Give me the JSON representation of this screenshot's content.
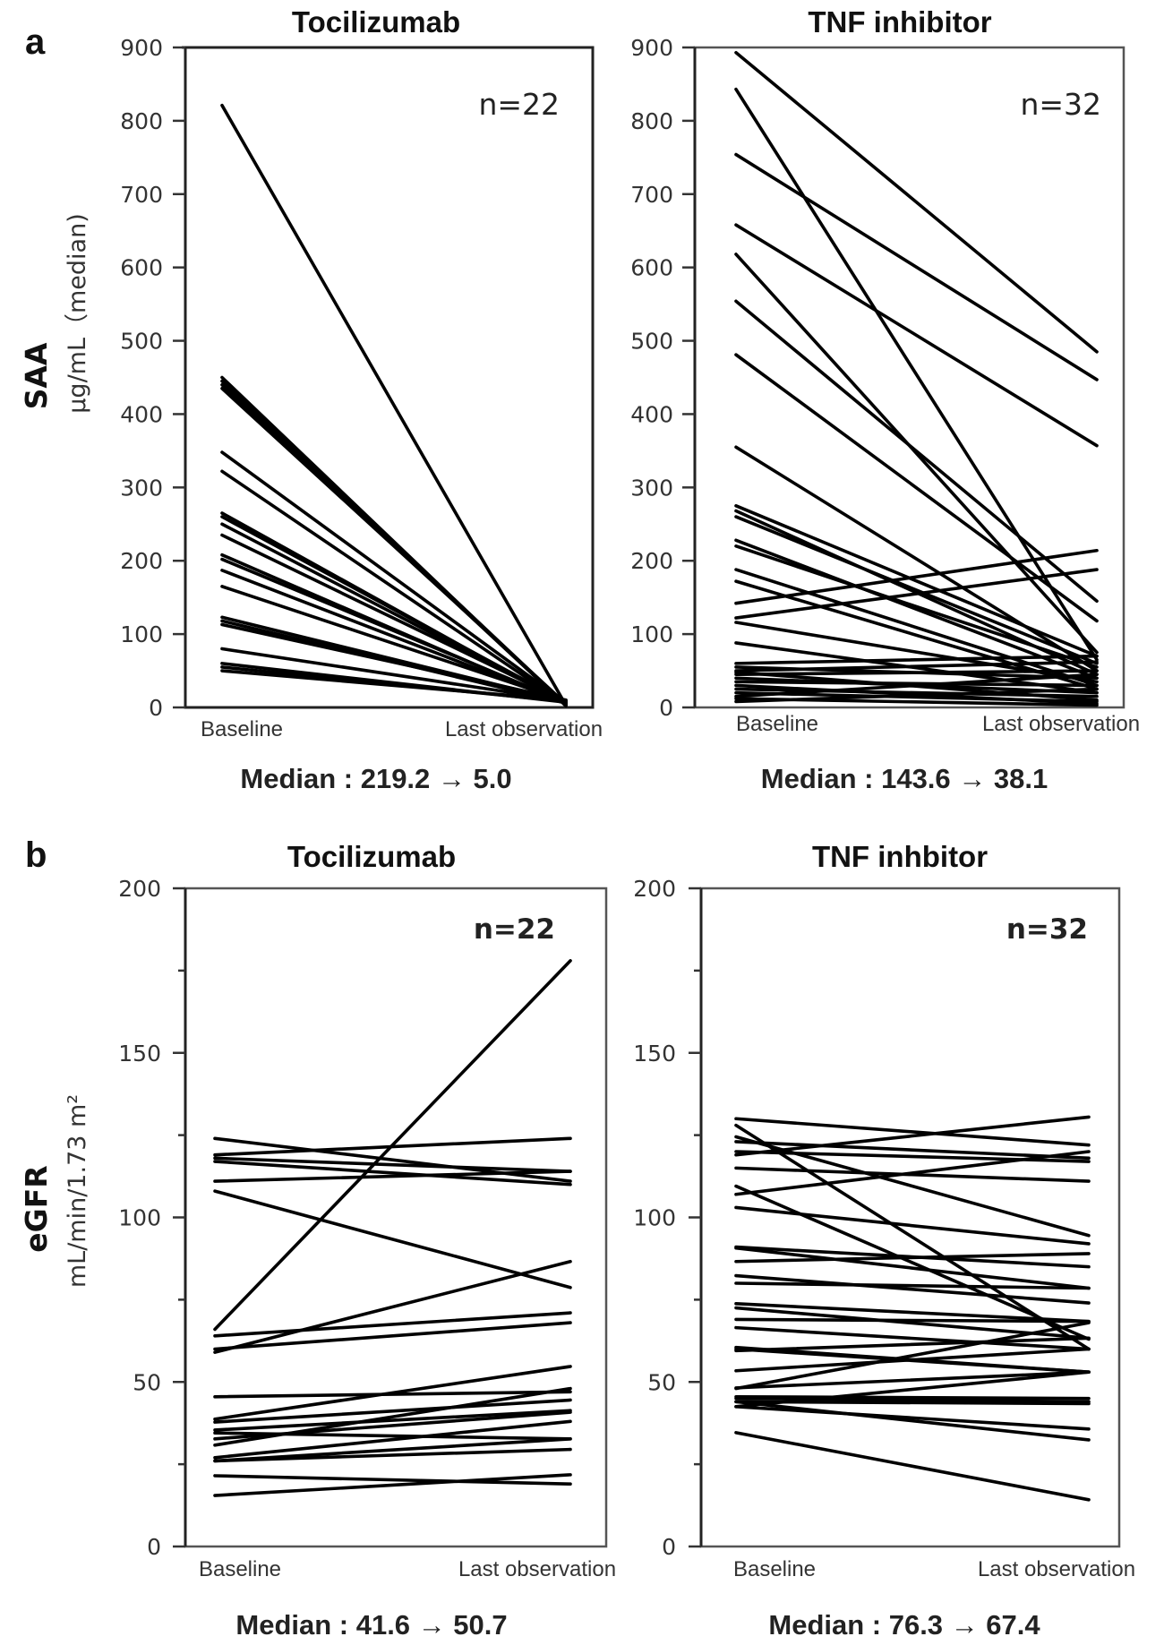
{
  "figure": {
    "panel_a_letter": "a",
    "panel_b_letter": "b",
    "saa_ytitle": "SAA",
    "saa_yunit": "μg/mL（median)",
    "egfr_ytitle": "eGFR",
    "egfr_yunit": "mL/min/1.73 m²"
  },
  "chart_data": [
    {
      "id": "saa-tocilizumab",
      "type": "line",
      "title": "Tocilizumab",
      "n_label": "n=22",
      "xlabel": "",
      "ylabel": "SAA μg/mL (median)",
      "categories": [
        "Baseline",
        "Last observation"
      ],
      "ylim": [
        0,
        900
      ],
      "yticks": [
        0,
        100,
        200,
        300,
        400,
        500,
        600,
        700,
        800,
        900
      ],
      "minor_yticks": [],
      "median_text": "Median : 219.2 → 5.0",
      "series": [
        {
          "values": [
            821,
            3
          ]
        },
        {
          "values": [
            450,
            2
          ]
        },
        {
          "values": [
            445,
            4
          ]
        },
        {
          "values": [
            440,
            3
          ]
        },
        {
          "values": [
            435,
            5
          ]
        },
        {
          "values": [
            348,
            6
          ]
        },
        {
          "values": [
            322,
            4
          ]
        },
        {
          "values": [
            265,
            5
          ]
        },
        {
          "values": [
            260,
            7
          ]
        },
        {
          "values": [
            250,
            6
          ]
        },
        {
          "values": [
            235,
            8
          ]
        },
        {
          "values": [
            208,
            5
          ]
        },
        {
          "values": [
            202,
            7
          ]
        },
        {
          "values": [
            187,
            6
          ]
        },
        {
          "values": [
            165,
            9
          ]
        },
        {
          "values": [
            123,
            8
          ]
        },
        {
          "values": [
            118,
            6
          ]
        },
        {
          "values": [
            113,
            10
          ]
        },
        {
          "values": [
            80,
            9
          ]
        },
        {
          "values": [
            60,
            7
          ]
        },
        {
          "values": [
            55,
            8
          ]
        },
        {
          "values": [
            50,
            10
          ]
        }
      ]
    },
    {
      "id": "saa-tnf",
      "type": "line",
      "title": "TNF inhibitor",
      "n_label": "n=32",
      "xlabel": "",
      "ylabel": "SAA μg/mL (median)",
      "categories": [
        "Baseline",
        "Last observation"
      ],
      "ylim": [
        0,
        900
      ],
      "yticks": [
        0,
        100,
        200,
        300,
        400,
        500,
        600,
        700,
        800,
        900
      ],
      "minor_yticks": [],
      "median_text": "Median : 143.6 → 38.1",
      "series": [
        {
          "values": [
            893,
            485
          ]
        },
        {
          "values": [
            843,
            65
          ]
        },
        {
          "values": [
            754,
            447
          ]
        },
        {
          "values": [
            658,
            357
          ]
        },
        {
          "values": [
            618,
            75
          ]
        },
        {
          "values": [
            554,
            145
          ]
        },
        {
          "values": [
            481,
            118
          ]
        },
        {
          "values": [
            355,
            50
          ]
        },
        {
          "values": [
            275,
            70
          ]
        },
        {
          "values": [
            268,
            45
          ]
        },
        {
          "values": [
            260,
            60
          ]
        },
        {
          "values": [
            228,
            40
          ]
        },
        {
          "values": [
            220,
            55
          ]
        },
        {
          "values": [
            188,
            30
          ]
        },
        {
          "values": [
            172,
            25
          ]
        },
        {
          "values": [
            142,
            214
          ]
        },
        {
          "values": [
            122,
            188
          ]
        },
        {
          "values": [
            116,
            35
          ]
        },
        {
          "values": [
            88,
            20
          ]
        },
        {
          "values": [
            60,
            70
          ]
        },
        {
          "values": [
            55,
            40
          ]
        },
        {
          "values": [
            50,
            62
          ]
        },
        {
          "values": [
            48,
            10
          ]
        },
        {
          "values": [
            45,
            50
          ]
        },
        {
          "values": [
            40,
            20
          ]
        },
        {
          "values": [
            35,
            30
          ]
        },
        {
          "values": [
            30,
            5
          ]
        },
        {
          "values": [
            25,
            15
          ]
        },
        {
          "values": [
            20,
            8
          ]
        },
        {
          "values": [
            15,
            45
          ]
        },
        {
          "values": [
            12,
            3
          ]
        },
        {
          "values": [
            8,
            25
          ]
        }
      ]
    },
    {
      "id": "egfr-tocilizumab",
      "type": "line",
      "title": "Tocilizumab",
      "n_label": "n=22",
      "xlabel": "",
      "ylabel": "eGFR mL/min/1.73 m²",
      "categories": [
        "Baseline",
        "Last observation"
      ],
      "ylim": [
        0,
        200
      ],
      "yticks": [
        0,
        50,
        100,
        150,
        200
      ],
      "minor_yticks": [
        25,
        75,
        125,
        175
      ],
      "median_text": "Median : 41.6 → 50.7",
      "series": [
        {
          "values": [
            66,
            178
          ]
        },
        {
          "values": [
            124,
            111
          ]
        },
        {
          "values": [
            119,
            124
          ]
        },
        {
          "values": [
            118,
            114
          ]
        },
        {
          "values": [
            117,
            110
          ]
        },
        {
          "values": [
            111,
            114
          ]
        },
        {
          "values": [
            108,
            78.7
          ]
        },
        {
          "values": [
            64,
            71
          ]
        },
        {
          "values": [
            60,
            68
          ]
        },
        {
          "values": [
            59,
            86.6
          ]
        },
        {
          "values": [
            45.5,
            47
          ]
        },
        {
          "values": [
            38.7,
            54.7
          ]
        },
        {
          "values": [
            37.8,
            44.5
          ]
        },
        {
          "values": [
            35.4,
            41.3
          ]
        },
        {
          "values": [
            34.5,
            32.7
          ]
        },
        {
          "values": [
            32.7,
            40.8
          ]
        },
        {
          "values": [
            30.8,
            48
          ]
        },
        {
          "values": [
            27,
            38
          ]
        },
        {
          "values": [
            26,
            29.5
          ]
        },
        {
          "values": [
            21.5,
            19
          ]
        },
        {
          "values": [
            15.5,
            21.8
          ]
        },
        {
          "values": [
            26,
            32.7
          ]
        }
      ]
    },
    {
      "id": "egfr-tnf",
      "type": "line",
      "title": "TNF inhbitor",
      "n_label": "n=32",
      "xlabel": "",
      "ylabel": "eGFR mL/min/1.73 m²",
      "categories": [
        "Baseline",
        "Last observation"
      ],
      "ylim": [
        0,
        200
      ],
      "yticks": [
        0,
        50,
        100,
        150,
        200
      ],
      "minor_yticks": [
        25,
        75,
        125,
        175
      ],
      "median_text": "Median : 76.3 → 67.4",
      "series": [
        {
          "values": [
            130,
            122
          ]
        },
        {
          "values": [
            128,
            60
          ]
        },
        {
          "values": [
            124.5,
            94.5
          ]
        },
        {
          "values": [
            123,
            118
          ]
        },
        {
          "values": [
            120,
            117
          ]
        },
        {
          "values": [
            119,
            130.5
          ]
        },
        {
          "values": [
            115,
            111
          ]
        },
        {
          "values": [
            109.5,
            63
          ]
        },
        {
          "values": [
            107,
            120
          ]
        },
        {
          "values": [
            103,
            92
          ]
        },
        {
          "values": [
            91,
            85
          ]
        },
        {
          "values": [
            90.7,
            78.5
          ]
        },
        {
          "values": [
            86.6,
            89
          ]
        },
        {
          "values": [
            82.3,
            74
          ]
        },
        {
          "values": [
            80,
            78.5
          ]
        },
        {
          "values": [
            73.8,
            68.4
          ]
        },
        {
          "values": [
            72.5,
            63.3
          ]
        },
        {
          "values": [
            69,
            68.4
          ]
        },
        {
          "values": [
            66.5,
            60
          ]
        },
        {
          "values": [
            60.5,
            53
          ]
        },
        {
          "values": [
            59.5,
            63.3
          ]
        },
        {
          "values": [
            53.4,
            60
          ]
        },
        {
          "values": [
            48.2,
            53
          ]
        },
        {
          "values": [
            45.5,
            45
          ]
        },
        {
          "values": [
            44,
            43.4
          ]
        },
        {
          "values": [
            42.5,
            53
          ]
        },
        {
          "values": [
            42.5,
            35.7
          ]
        },
        {
          "values": [
            44,
            32.4
          ]
        },
        {
          "values": [
            34.6,
            14.2
          ]
        },
        {
          "values": [
            48,
            68
          ]
        },
        {
          "values": [
            45,
            44
          ]
        },
        {
          "values": [
            60,
            53
          ]
        }
      ]
    }
  ]
}
